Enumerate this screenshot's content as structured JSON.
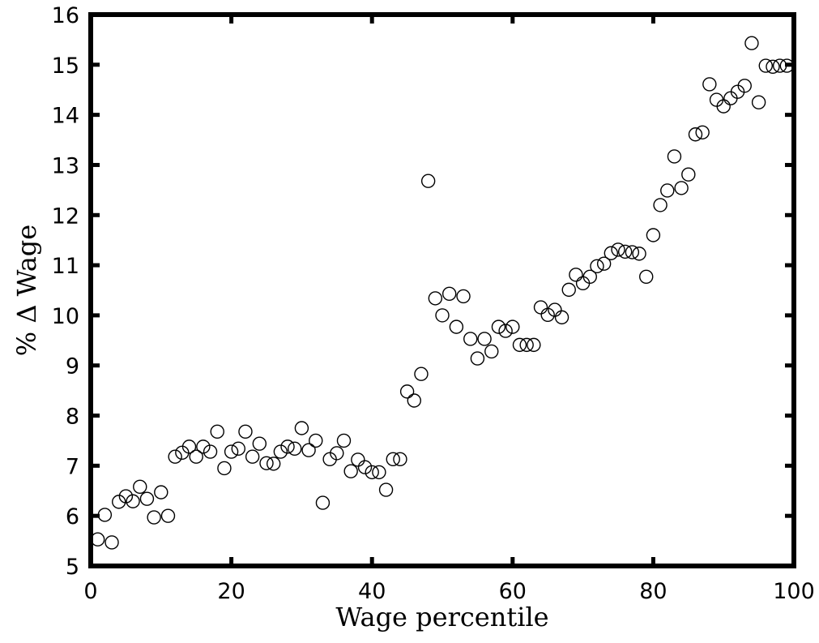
{
  "chart_data": {
    "type": "scatter",
    "xlabel": "Wage percentile",
    "ylabel": "% Δ Wage",
    "x": [
      1,
      2,
      3,
      4,
      5,
      6,
      7,
      8,
      9,
      10,
      11,
      12,
      13,
      14,
      15,
      16,
      17,
      18,
      19,
      20,
      21,
      22,
      23,
      24,
      25,
      26,
      27,
      28,
      29,
      30,
      31,
      32,
      33,
      34,
      35,
      36,
      37,
      38,
      39,
      40,
      41,
      42,
      43,
      44,
      45,
      46,
      47,
      48,
      49,
      50,
      51,
      52,
      53,
      54,
      55,
      56,
      57,
      58,
      59,
      60,
      61,
      62,
      63,
      64,
      65,
      66,
      67,
      68,
      69,
      70,
      71,
      72,
      73,
      74,
      75,
      76,
      77,
      78,
      79,
      80,
      81,
      82,
      83,
      84,
      85,
      86,
      87,
      88,
      89,
      90,
      91,
      92,
      93,
      94,
      95,
      96,
      97,
      98,
      99
    ],
    "values": [
      5.53,
      6.02,
      5.47,
      6.28,
      6.39,
      6.29,
      6.58,
      6.34,
      5.97,
      6.47,
      6.0,
      7.18,
      7.26,
      7.38,
      7.18,
      7.38,
      7.28,
      7.68,
      6.95,
      7.28,
      7.34,
      7.68,
      7.18,
      7.44,
      7.05,
      7.04,
      7.28,
      7.38,
      7.34,
      7.75,
      7.31,
      7.5,
      6.26,
      7.13,
      7.25,
      7.5,
      6.89,
      7.12,
      6.97,
      6.87,
      6.87,
      6.52,
      7.13,
      7.13,
      8.48,
      8.3,
      8.83,
      12.68,
      10.34,
      10.0,
      10.43,
      9.77,
      10.38,
      9.53,
      9.14,
      9.53,
      9.28,
      9.77,
      9.69,
      9.77,
      9.41,
      9.41,
      9.41,
      10.16,
      10.01,
      10.11,
      9.96,
      10.51,
      10.81,
      10.64,
      10.77,
      10.98,
      11.03,
      11.24,
      11.31,
      11.27,
      11.26,
      11.23,
      10.77,
      11.6,
      12.2,
      12.49,
      13.17,
      12.54,
      12.81,
      13.61,
      13.65,
      14.61,
      14.3,
      14.17,
      14.33,
      14.46,
      14.58,
      15.43,
      14.25,
      14.98,
      14.96,
      14.98,
      14.98
    ],
    "color": "#000000",
    "xlim": [
      0,
      100
    ],
    "xticks": [
      0,
      20,
      40,
      60,
      80,
      100
    ],
    "ylim": [
      5,
      16
    ],
    "yticks": [
      5,
      6,
      7,
      8,
      9,
      10,
      11,
      12,
      13,
      14,
      15,
      16
    ],
    "grid": false
  }
}
